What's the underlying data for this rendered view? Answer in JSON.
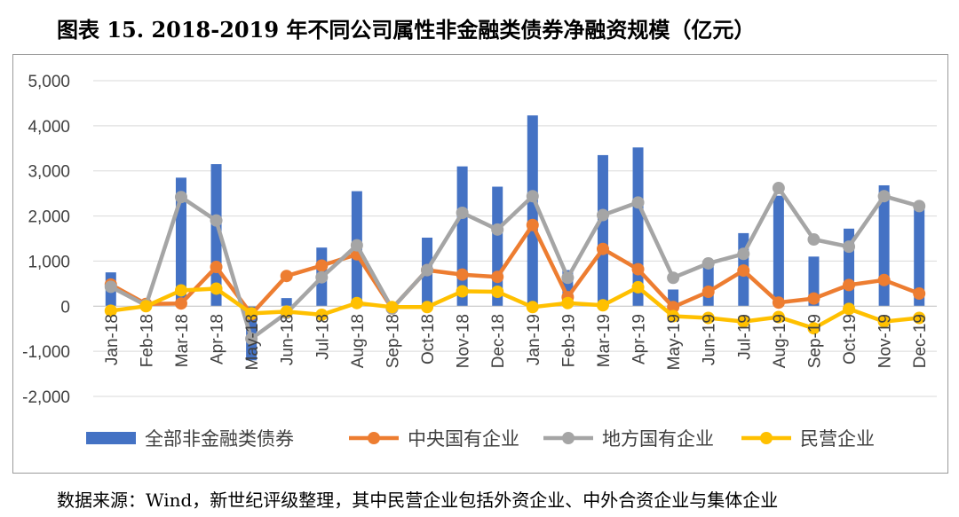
{
  "title": "图表 15. 2018-2019 年不同公司属性非金融类债券净融资规模（亿元）",
  "source": "数据来源：Wind，新世纪评级整理，其中民营企业包括外资企业、中外合资企业与集体企业",
  "chart_data": {
    "type": "bar+line",
    "title": "图表 15. 2018-2019 年不同公司属性非金融类债券净融资规模（亿元）",
    "xlabel": "",
    "ylabel": "",
    "ylim": [
      -2000,
      5000
    ],
    "yticks": [
      -2000,
      -1000,
      0,
      1000,
      2000,
      3000,
      4000,
      5000
    ],
    "ytick_labels": [
      "-2,000",
      "-1,000",
      "0",
      "1,000",
      "2,000",
      "3,000",
      "4,000",
      "5,000"
    ],
    "grid": true,
    "legend_position": "bottom",
    "categories": [
      "Jan-18",
      "Feb-18",
      "Mar-18",
      "Apr-18",
      "May-18",
      "Jun-18",
      "Jul-18",
      "Aug-18",
      "Sep-18",
      "Oct-18",
      "Nov-18",
      "Dec-18",
      "Jan-19",
      "Feb-19",
      "Mar-19",
      "Apr-19",
      "May-19",
      "Jun-19",
      "Jul-19",
      "Aug-19",
      "Sep-19",
      "Oct-19",
      "Nov-19",
      "Dec-19"
    ],
    "series": [
      {
        "name": "全部非金融类债券",
        "type": "bar",
        "color": "#4472C4",
        "values": [
          750,
          30,
          2850,
          3150,
          -1200,
          180,
          1300,
          2550,
          -50,
          1520,
          3100,
          2650,
          4230,
          800,
          3350,
          3520,
          370,
          950,
          1620,
          2450,
          1100,
          1720,
          2680,
          2200
        ]
      },
      {
        "name": "中央国有企业",
        "type": "line",
        "color": "#ED7D31",
        "values": [
          480,
          50,
          60,
          870,
          -180,
          670,
          900,
          1150,
          -50,
          800,
          700,
          650,
          1800,
          200,
          1270,
          820,
          -20,
          320,
          790,
          80,
          170,
          470,
          580,
          280
        ]
      },
      {
        "name": "地方国有企业",
        "type": "line",
        "color": "#A5A5A5",
        "values": [
          430,
          20,
          2420,
          1900,
          -720,
          -150,
          640,
          1350,
          -50,
          800,
          2070,
          1700,
          2440,
          630,
          2020,
          2300,
          630,
          950,
          1160,
          2620,
          1480,
          1320,
          2440,
          2220
        ]
      },
      {
        "name": "民营企业",
        "type": "line",
        "color": "#FFC000",
        "values": [
          -100,
          0,
          350,
          390,
          -160,
          -120,
          -190,
          70,
          -20,
          -20,
          330,
          320,
          -20,
          70,
          20,
          420,
          -220,
          -260,
          -340,
          -240,
          -490,
          -60,
          -340,
          -260
        ]
      }
    ]
  }
}
